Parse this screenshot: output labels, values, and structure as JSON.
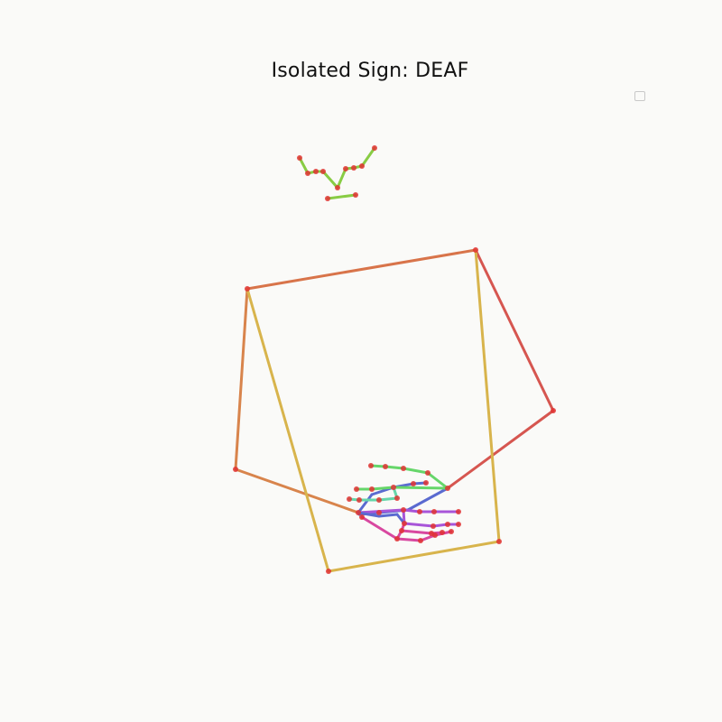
{
  "title": "Isolated Sign: DEAF",
  "colors": {
    "background": "#fafaf8",
    "joint": "#e03232",
    "face": "#88cc44",
    "torso_top": "#d8744a",
    "torso_right": "#d65650",
    "torso_left": "#d8844c",
    "torso_diag": "#d8b44c",
    "hand_thumb": "#5a6ad0",
    "hand_index": "#66d66a",
    "hand_middle": "#66d6aa",
    "hand_ring": "#a855d8",
    "hand_pinky": "#d848a0"
  }
}
